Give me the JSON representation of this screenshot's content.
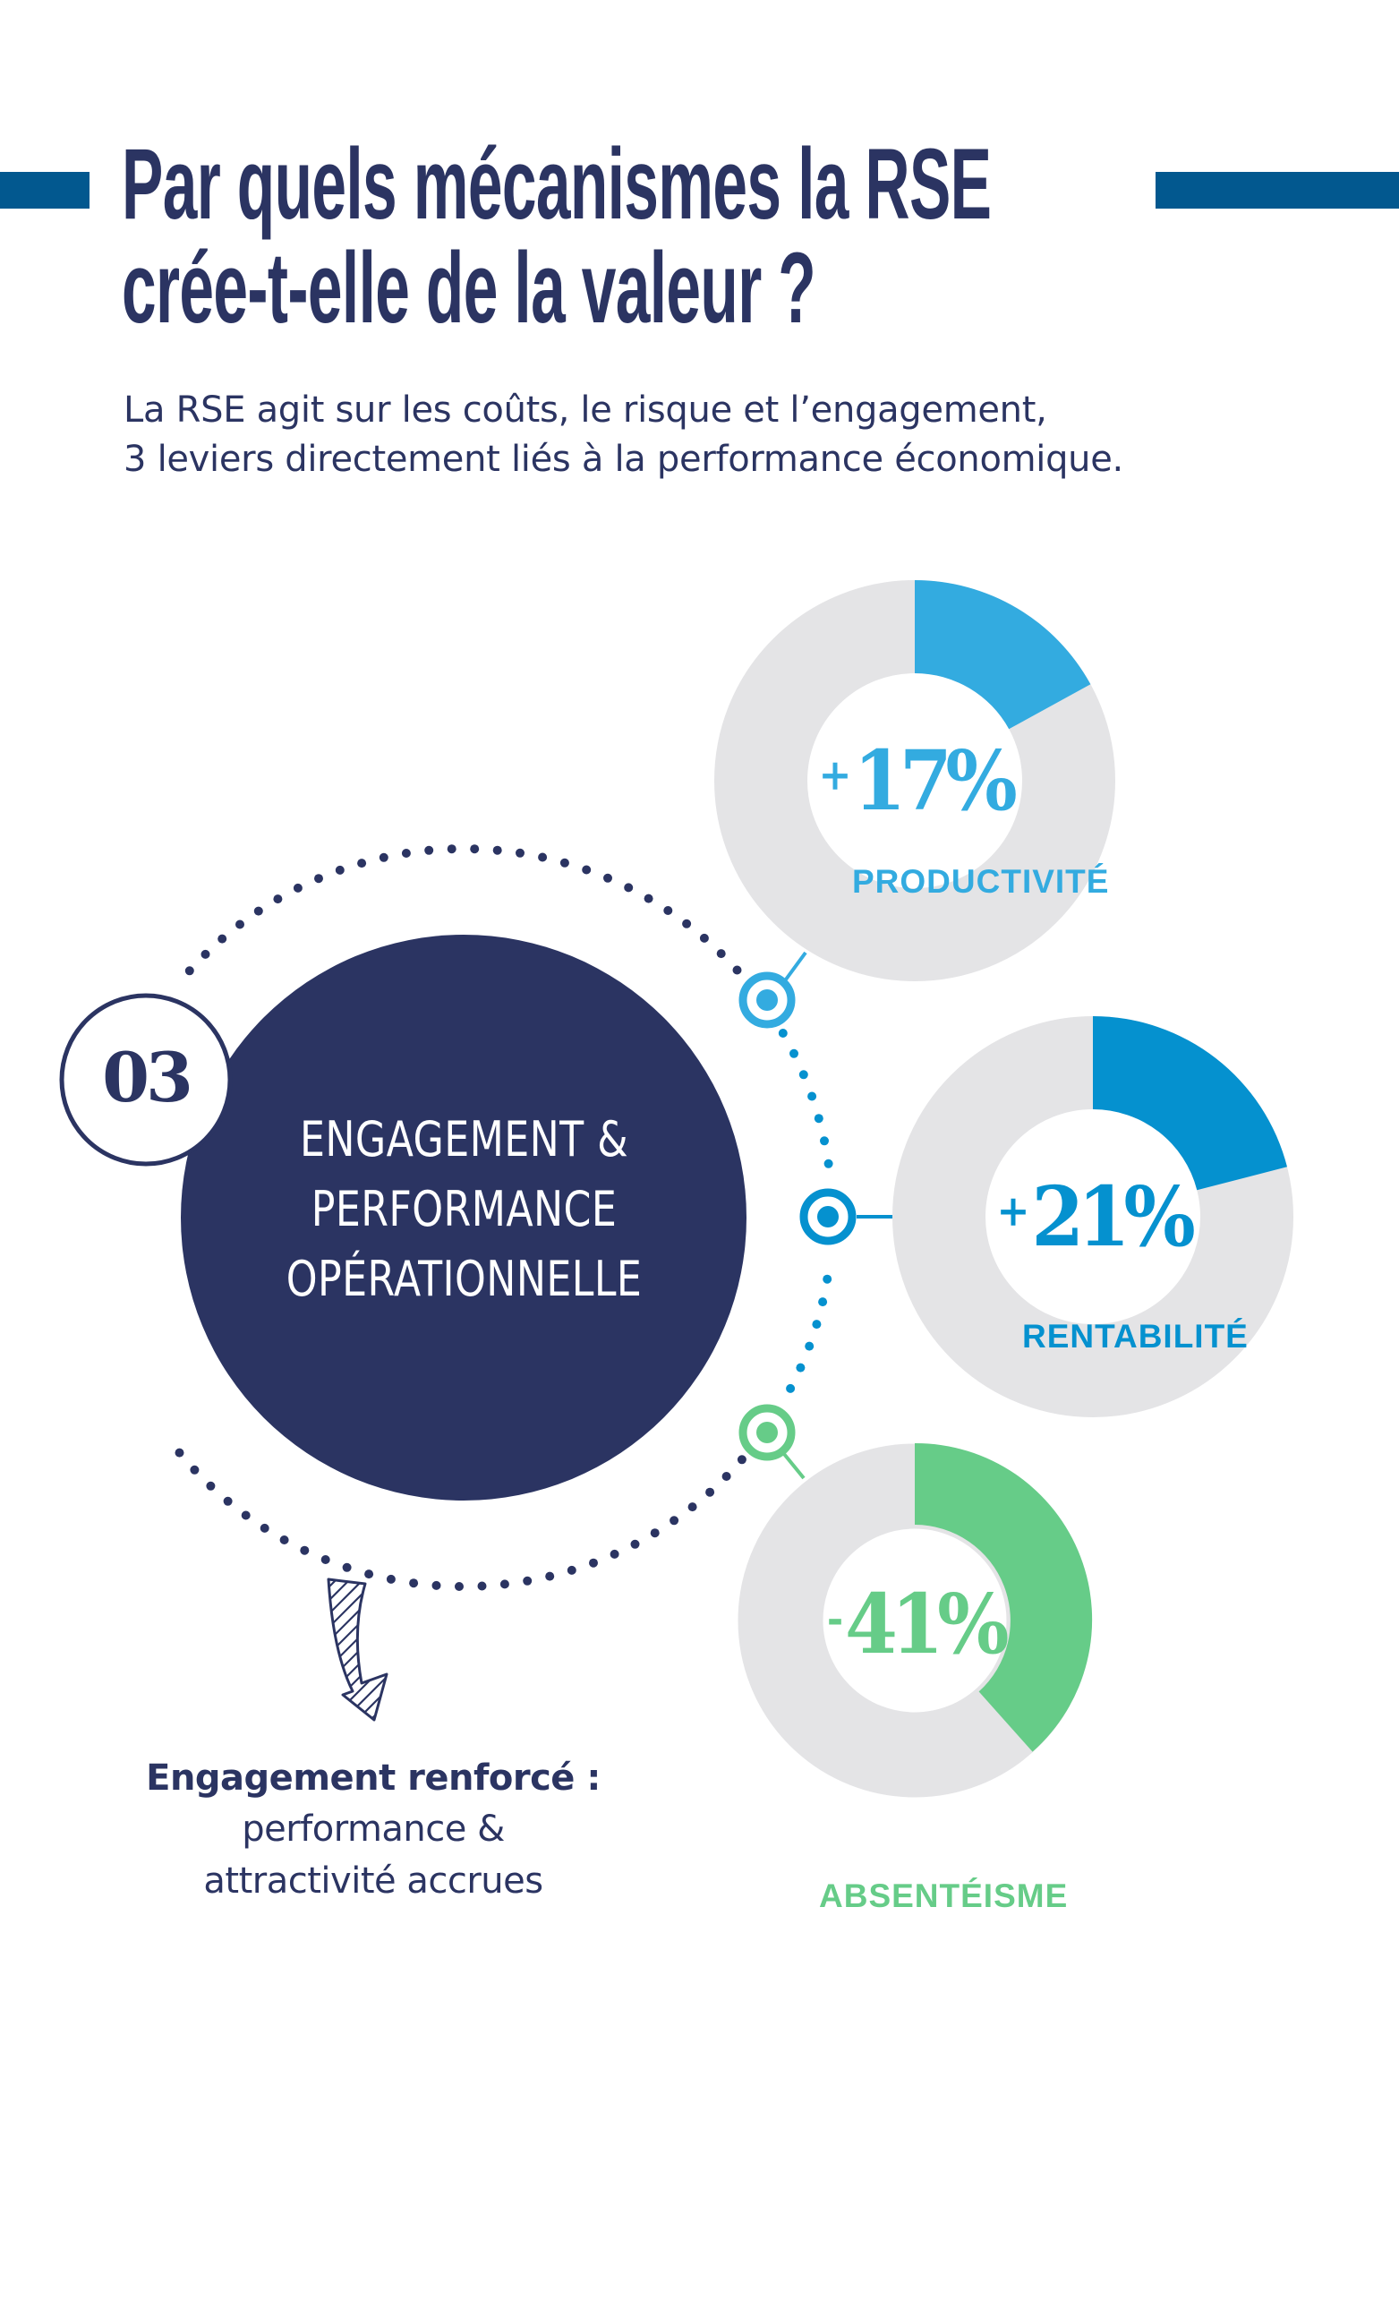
{
  "header": {
    "title_lines": [
      "Par quels mécanismes la RSE",
      "crée-t-elle de la valeur ?"
    ],
    "subtitle_lines": [
      "La RSE agit sur les coûts, le risque et l’engagement,",
      "3 leviers directement liés à la performance économique."
    ]
  },
  "section": {
    "number": "03",
    "title_lines": [
      "ENGAGEMENT &",
      "PERFORMANCE",
      "OPÉRATIONNELLE"
    ]
  },
  "conclusion": {
    "bold": "Engagement renforcé :",
    "lines": [
      "performance &",
      "attractivité accrues"
    ]
  },
  "stats": [
    {
      "sign": "+",
      "value": "17%",
      "label": "PRODUCTIVITÉ",
      "color": "#33abe0"
    },
    {
      "sign": "+",
      "value": "21%",
      "label": "RENTABILITÉ",
      "color": "#0591cf"
    },
    {
      "sign": "-",
      "value": "41%",
      "label": "ABSENTÉISME",
      "color": "#66cc88"
    }
  ],
  "colors": {
    "navy": "#2b3462",
    "accent_bar": "#02588f",
    "donut_track": "#e4e4e6",
    "light_blue": "#33abe0",
    "blue": "#0591cf",
    "green": "#66cc88"
  },
  "icons": {
    "markers": [
      "target-marker-icon",
      "target-marker-icon",
      "target-marker-icon"
    ],
    "arrow": "hatched-curved-arrow-icon"
  },
  "chart_data": {
    "type": "pie",
    "subtype": "donut",
    "title": "ENGAGEMENT & PERFORMANCE OPÉRATIONNELLE",
    "series": [
      {
        "name": "PRODUCTIVITÉ",
        "value": 17,
        "display": "+17%",
        "color": "#33abe0"
      },
      {
        "name": "RENTABILITÉ",
        "value": 21,
        "display": "+21%",
        "color": "#0591cf"
      },
      {
        "name": "ABSENTÉISME",
        "value": 41,
        "display": "-41%",
        "color": "#66cc88"
      }
    ],
    "unit": "%",
    "remainder_color": "#e4e4e6"
  }
}
